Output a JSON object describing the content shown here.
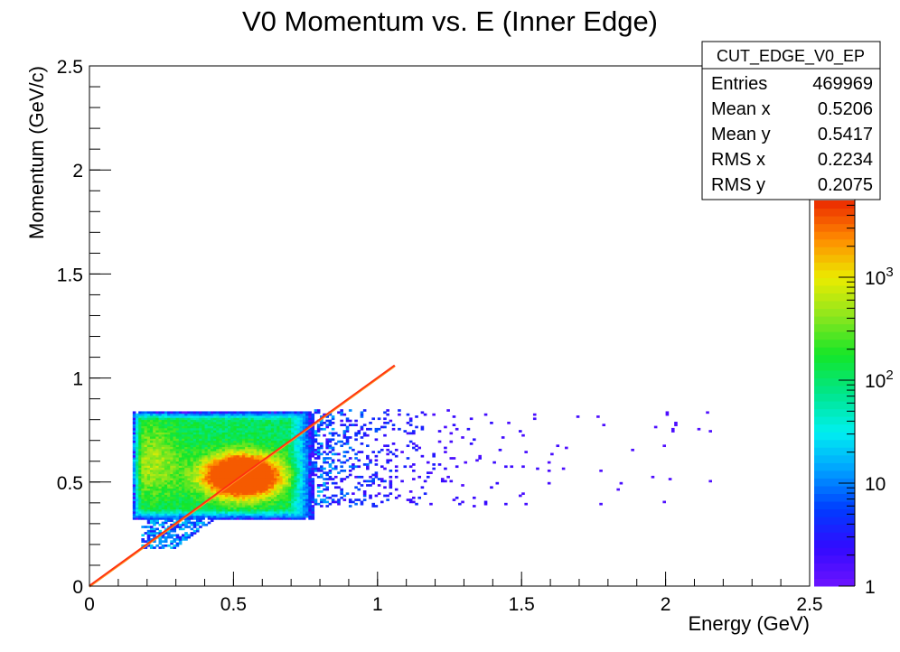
{
  "chart_data": {
    "type": "heatmap",
    "title": "V0 Momentum vs. E (Inner Edge)",
    "xlabel": "Energy (GeV)",
    "ylabel": "Momentum (GeV/c)",
    "xlim": [
      0,
      2.5
    ],
    "ylim": [
      0,
      2.5
    ],
    "x_ticks": [
      "0",
      "0.5",
      "1",
      "1.5",
      "2",
      "2.5"
    ],
    "y_ticks": [
      "0",
      "0.5",
      "1",
      "1.5",
      "2",
      "2.5"
    ],
    "grid": false,
    "color_scale": "log",
    "z_ticks": [
      {
        "base": "1",
        "exp": ""
      },
      {
        "base": "10",
        "exp": ""
      },
      {
        "base": "10",
        "exp": "2"
      },
      {
        "base": "10",
        "exp": "3"
      }
    ],
    "stats_box": {
      "name": "CUT_EDGE_V0_EP",
      "rows": [
        {
          "label": "Entries",
          "value": "469969"
        },
        {
          "label": "Mean x",
          "value": "0.5206"
        },
        {
          "label": "Mean y",
          "value": "0.5417"
        },
        {
          "label": "RMS x",
          "value": "0.2234"
        },
        {
          "label": "RMS y",
          "value": "0.2075"
        }
      ]
    },
    "distribution": {
      "core": {
        "x": 0.53,
        "y": 0.53,
        "peak_counts": 2000
      },
      "band": {
        "x": [
          0.15,
          0.78
        ],
        "y": [
          0.32,
          0.84
        ]
      },
      "low_tail": {
        "x": [
          0.18,
          0.45
        ],
        "y": [
          0.18,
          0.35
        ]
      },
      "sparse_tail": {
        "x": [
          0.78,
          2.25
        ],
        "y": [
          0.38,
          0.85
        ]
      },
      "diagonal_line": {
        "x": [
          0,
          1.06
        ],
        "y": [
          0,
          1.06
        ]
      }
    }
  }
}
